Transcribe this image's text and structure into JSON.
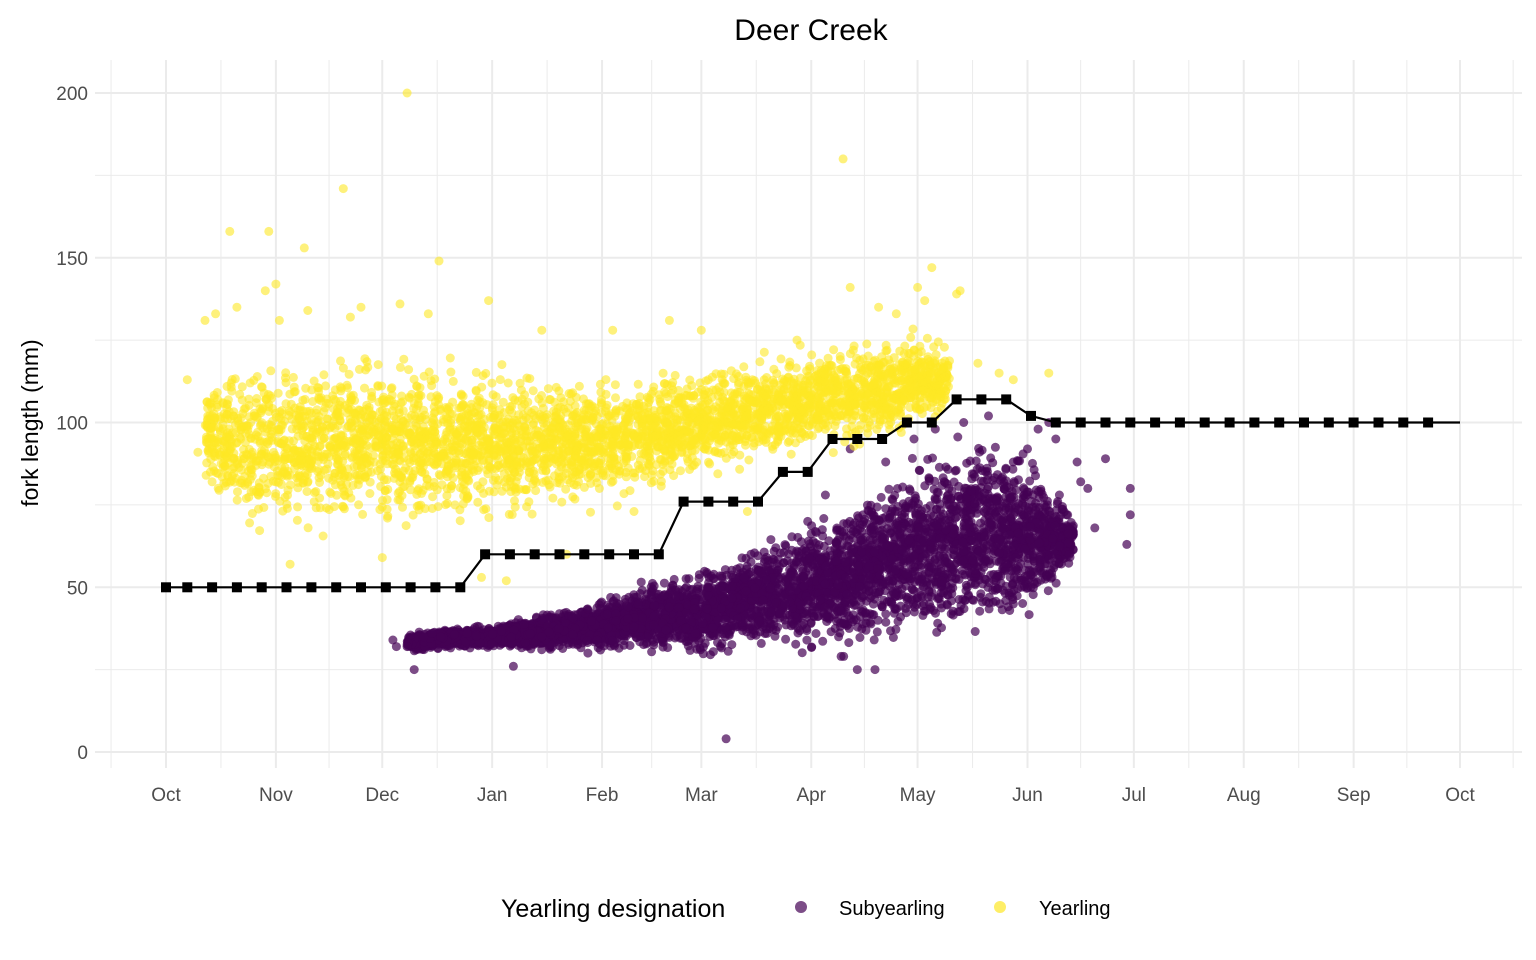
{
  "chart_data": {
    "type": "scatter",
    "title": "Deer Creek",
    "xlabel": "",
    "ylabel": "fork length (mm)",
    "x_ticks": [
      "Oct",
      "Nov",
      "Dec",
      "Jan",
      "Feb",
      "Mar",
      "Apr",
      "May",
      "Jun",
      "Jul",
      "Aug",
      "Sep",
      "Oct"
    ],
    "y_ticks": [
      "0",
      "50",
      "100",
      "150",
      "200"
    ],
    "x_range": [
      "2012-10-01",
      "2013-10-01"
    ],
    "ylim": [
      0,
      200
    ],
    "grid": true,
    "legend": {
      "title": "Yearling designation",
      "placement": "bottom",
      "entries": [
        "Subyearling",
        "Yearling"
      ]
    },
    "series": [
      {
        "name": "Subyearling",
        "color": "#440154",
        "opacity": 0.7,
        "points": [
          {
            "x": "2012-12-04",
            "y": 34
          },
          {
            "x": "2012-12-05",
            "y": 32
          },
          {
            "x": "2012-12-08",
            "y": 32
          },
          {
            "x": "2012-12-10",
            "y": 25
          },
          {
            "x": "2012-12-15",
            "y": 36
          },
          {
            "x": "2012-12-25",
            "y": 36
          },
          {
            "x": "2013-01-07",
            "y": 26
          },
          {
            "x": "2013-01-15",
            "y": 35
          },
          {
            "x": "2013-01-28",
            "y": 30
          },
          {
            "x": "2013-02-10",
            "y": 38
          },
          {
            "x": "2013-02-20",
            "y": 44
          },
          {
            "x": "2013-03-03",
            "y": 50
          },
          {
            "x": "2013-03-08",
            "y": 4
          },
          {
            "x": "2013-03-15",
            "y": 60
          },
          {
            "x": "2013-03-22",
            "y": 62
          },
          {
            "x": "2013-03-31",
            "y": 70
          },
          {
            "x": "2013-04-05",
            "y": 78
          },
          {
            "x": "2013-04-12",
            "y": 92
          },
          {
            "x": "2013-04-14",
            "y": 25
          },
          {
            "x": "2013-04-19",
            "y": 25
          },
          {
            "x": "2013-04-22",
            "y": 88
          },
          {
            "x": "2013-04-30",
            "y": 95
          },
          {
            "x": "2013-05-06",
            "y": 98
          },
          {
            "x": "2013-05-14",
            "y": 100
          },
          {
            "x": "2013-05-21",
            "y": 102
          },
          {
            "x": "2013-05-28",
            "y": 88
          },
          {
            "x": "2013-06-01",
            "y": 92
          },
          {
            "x": "2013-06-04",
            "y": 98
          },
          {
            "x": "2013-06-07",
            "y": 100
          },
          {
            "x": "2013-06-09",
            "y": 95
          },
          {
            "x": "2013-06-10",
            "y": 78
          },
          {
            "x": "2013-06-12",
            "y": 72
          },
          {
            "x": "2013-06-15",
            "y": 88
          },
          {
            "x": "2013-06-16",
            "y": 82
          },
          {
            "x": "2013-06-18",
            "y": 80
          },
          {
            "x": "2013-06-20",
            "y": 68
          },
          {
            "x": "2013-06-23",
            "y": 89
          },
          {
            "x": "2013-06-29",
            "y": 63
          },
          {
            "x": "2013-06-30",
            "y": 80
          },
          {
            "x": "2013-06-30",
            "y": 72
          }
        ],
        "band": [
          {
            "x": "2012-12-08",
            "lo": 30,
            "hi": 36
          },
          {
            "x": "2012-12-20",
            "lo": 31,
            "hi": 38
          },
          {
            "x": "2013-01-01",
            "lo": 31,
            "hi": 39
          },
          {
            "x": "2013-01-15",
            "lo": 30,
            "hi": 43
          },
          {
            "x": "2013-02-01",
            "lo": 29,
            "hi": 47
          },
          {
            "x": "2013-02-15",
            "lo": 29,
            "hi": 53
          },
          {
            "x": "2013-03-01",
            "lo": 28,
            "hi": 58
          },
          {
            "x": "2013-03-15",
            "lo": 28,
            "hi": 64
          },
          {
            "x": "2013-04-01",
            "lo": 29,
            "hi": 72
          },
          {
            "x": "2013-04-15",
            "lo": 29,
            "hi": 82
          },
          {
            "x": "2013-05-01",
            "lo": 30,
            "hi": 92
          },
          {
            "x": "2013-05-15",
            "lo": 31,
            "hi": 99
          },
          {
            "x": "2013-05-25",
            "lo": 32,
            "hi": 99
          },
          {
            "x": "2013-06-01",
            "lo": 37,
            "hi": 93
          },
          {
            "x": "2013-06-08",
            "lo": 45,
            "hi": 85
          },
          {
            "x": "2013-06-14",
            "lo": 58,
            "hi": 72
          }
        ]
      },
      {
        "name": "Yearling",
        "color": "#fde725",
        "opacity": 0.6,
        "points": [
          {
            "x": "2012-10-07",
            "y": 113
          },
          {
            "x": "2012-10-10",
            "y": 91
          },
          {
            "x": "2012-10-12",
            "y": 131
          },
          {
            "x": "2012-10-14",
            "y": 82
          },
          {
            "x": "2012-10-15",
            "y": 133
          },
          {
            "x": "2012-10-19",
            "y": 158
          },
          {
            "x": "2012-10-21",
            "y": 135
          },
          {
            "x": "2012-10-25",
            "y": 79
          },
          {
            "x": "2012-10-29",
            "y": 140
          },
          {
            "x": "2012-10-30",
            "y": 158
          },
          {
            "x": "2012-11-01",
            "y": 142
          },
          {
            "x": "2012-11-02",
            "y": 131
          },
          {
            "x": "2012-11-05",
            "y": 57
          },
          {
            "x": "2012-11-09",
            "y": 153
          },
          {
            "x": "2012-11-10",
            "y": 134
          },
          {
            "x": "2012-11-20",
            "y": 171
          },
          {
            "x": "2012-11-22",
            "y": 132
          },
          {
            "x": "2012-11-25",
            "y": 135
          },
          {
            "x": "2012-12-06",
            "y": 136
          },
          {
            "x": "2012-12-01",
            "y": 59
          },
          {
            "x": "2012-12-08",
            "y": 200
          },
          {
            "x": "2012-12-14",
            "y": 133
          },
          {
            "x": "2012-12-17",
            "y": 149
          },
          {
            "x": "2012-12-29",
            "y": 53
          },
          {
            "x": "2012-12-31",
            "y": 137
          },
          {
            "x": "2013-01-05",
            "y": 52
          },
          {
            "x": "2013-01-15",
            "y": 128
          },
          {
            "x": "2013-01-22",
            "y": 60
          },
          {
            "x": "2013-02-04",
            "y": 128
          },
          {
            "x": "2013-02-10",
            "y": 73
          },
          {
            "x": "2013-02-20",
            "y": 131
          },
          {
            "x": "2013-03-01",
            "y": 128
          },
          {
            "x": "2013-03-14",
            "y": 73
          },
          {
            "x": "2013-03-28",
            "y": 125
          },
          {
            "x": "2013-04-10",
            "y": 180
          },
          {
            "x": "2013-04-12",
            "y": 141
          },
          {
            "x": "2013-04-20",
            "y": 135
          },
          {
            "x": "2013-04-25",
            "y": 133
          },
          {
            "x": "2013-05-01",
            "y": 141
          },
          {
            "x": "2013-05-03",
            "y": 137
          },
          {
            "x": "2013-05-05",
            "y": 147
          },
          {
            "x": "2013-05-12",
            "y": 139
          },
          {
            "x": "2013-05-13",
            "y": 140
          },
          {
            "x": "2013-05-18",
            "y": 118
          },
          {
            "x": "2013-05-24",
            "y": 115
          },
          {
            "x": "2013-05-28",
            "y": 113
          },
          {
            "x": "2013-06-07",
            "y": 115
          }
        ],
        "band": [
          {
            "x": "2012-10-12",
            "lo": 80,
            "hi": 115
          },
          {
            "x": "2012-10-25",
            "lo": 65,
            "hi": 122
          },
          {
            "x": "2012-11-05",
            "lo": 63,
            "hi": 124
          },
          {
            "x": "2012-11-20",
            "lo": 64,
            "hi": 124
          },
          {
            "x": "2012-12-05",
            "lo": 65,
            "hi": 122
          },
          {
            "x": "2012-12-20",
            "lo": 66,
            "hi": 120
          },
          {
            "x": "2013-01-05",
            "lo": 69,
            "hi": 118
          },
          {
            "x": "2013-01-20",
            "lo": 70,
            "hi": 118
          },
          {
            "x": "2013-02-05",
            "lo": 74,
            "hi": 117
          },
          {
            "x": "2013-02-20",
            "lo": 78,
            "hi": 118
          },
          {
            "x": "2013-03-05",
            "lo": 82,
            "hi": 120
          },
          {
            "x": "2013-03-20",
            "lo": 86,
            "hi": 122
          },
          {
            "x": "2013-04-05",
            "lo": 89,
            "hi": 125
          },
          {
            "x": "2013-04-20",
            "lo": 92,
            "hi": 128
          },
          {
            "x": "2013-05-01",
            "lo": 95,
            "hi": 130
          },
          {
            "x": "2013-05-10",
            "lo": 100,
            "hi": 126
          }
        ]
      },
      {
        "name": "",
        "type": "step-line",
        "color": "#000000",
        "points": [
          {
            "x": "2012-10-01",
            "y": 50
          },
          {
            "x": "2012-10-07",
            "y": 50
          },
          {
            "x": "2012-10-14",
            "y": 50
          },
          {
            "x": "2012-10-21",
            "y": 50
          },
          {
            "x": "2012-10-28",
            "y": 50
          },
          {
            "x": "2012-11-04",
            "y": 50
          },
          {
            "x": "2012-11-11",
            "y": 50
          },
          {
            "x": "2012-11-18",
            "y": 50
          },
          {
            "x": "2012-11-25",
            "y": 50
          },
          {
            "x": "2012-12-02",
            "y": 50
          },
          {
            "x": "2012-12-09",
            "y": 50
          },
          {
            "x": "2012-12-16",
            "y": 50
          },
          {
            "x": "2012-12-23",
            "y": 50
          },
          {
            "x": "2012-12-30",
            "y": 60
          },
          {
            "x": "2013-01-06",
            "y": 60
          },
          {
            "x": "2013-01-13",
            "y": 60
          },
          {
            "x": "2013-01-20",
            "y": 60
          },
          {
            "x": "2013-01-27",
            "y": 60
          },
          {
            "x": "2013-02-03",
            "y": 60
          },
          {
            "x": "2013-02-10",
            "y": 60
          },
          {
            "x": "2013-02-17",
            "y": 60
          },
          {
            "x": "2013-02-24",
            "y": 76
          },
          {
            "x": "2013-03-03",
            "y": 76
          },
          {
            "x": "2013-03-10",
            "y": 76
          },
          {
            "x": "2013-03-17",
            "y": 76
          },
          {
            "x": "2013-03-24",
            "y": 85
          },
          {
            "x": "2013-03-31",
            "y": 85
          },
          {
            "x": "2013-04-07",
            "y": 95
          },
          {
            "x": "2013-04-14",
            "y": 95
          },
          {
            "x": "2013-04-21",
            "y": 95
          },
          {
            "x": "2013-04-28",
            "y": 100
          },
          {
            "x": "2013-05-05",
            "y": 100
          },
          {
            "x": "2013-05-12",
            "y": 107
          },
          {
            "x": "2013-05-19",
            "y": 107
          },
          {
            "x": "2013-05-26",
            "y": 107
          },
          {
            "x": "2013-06-02",
            "y": 102
          },
          {
            "x": "2013-06-09",
            "y": 100
          },
          {
            "x": "2013-06-16",
            "y": 100
          },
          {
            "x": "2013-06-23",
            "y": 100
          },
          {
            "x": "2013-06-30",
            "y": 100
          },
          {
            "x": "2013-07-07",
            "y": 100
          },
          {
            "x": "2013-07-14",
            "y": 100
          },
          {
            "x": "2013-07-21",
            "y": 100
          },
          {
            "x": "2013-07-28",
            "y": 100
          },
          {
            "x": "2013-08-04",
            "y": 100
          },
          {
            "x": "2013-08-11",
            "y": 100
          },
          {
            "x": "2013-08-18",
            "y": 100
          },
          {
            "x": "2013-08-25",
            "y": 100
          },
          {
            "x": "2013-09-01",
            "y": 100
          },
          {
            "x": "2013-09-08",
            "y": 100
          },
          {
            "x": "2013-09-15",
            "y": 100
          },
          {
            "x": "2013-09-22",
            "y": 100
          }
        ],
        "line_end": "2013-10-01"
      }
    ]
  }
}
